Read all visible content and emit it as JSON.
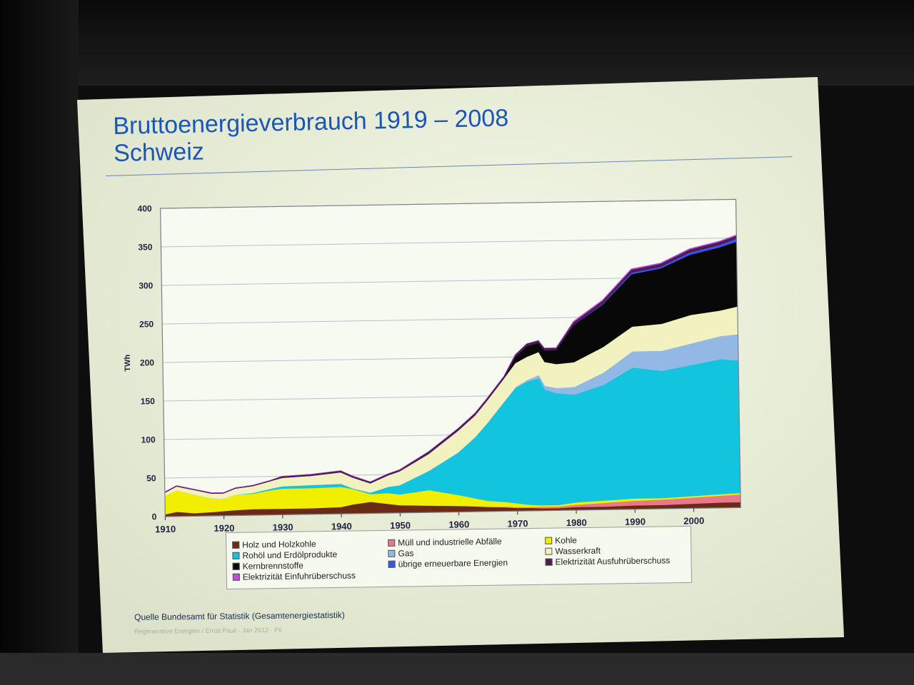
{
  "slide": {
    "title_line1": "Bruttoenergieverbrauch 1919 – 2008",
    "title_line2": "Schweiz",
    "source": "Quelle Bundesamt für Statistik (Gesamtenergiestatistik)",
    "footer": "Regenerative Energien  /  Ernst Pauli - Jan 2012 · P6"
  },
  "chart_data": {
    "type": "area",
    "title": "",
    "xlabel": "",
    "ylabel": "TWh",
    "xlim": [
      1910,
      2008
    ],
    "ylim": [
      0,
      400
    ],
    "x_ticks": [
      1910,
      1920,
      1930,
      1940,
      1950,
      1960,
      1970,
      1980,
      1990,
      2000
    ],
    "y_ticks": [
      0,
      50,
      100,
      150,
      200,
      250,
      300,
      350,
      400
    ],
    "grid": true,
    "legend_position": "bottom",
    "x": [
      1910,
      1912,
      1915,
      1918,
      1920,
      1922,
      1925,
      1928,
      1930,
      1935,
      1940,
      1942,
      1945,
      1948,
      1950,
      1955,
      1960,
      1963,
      1965,
      1968,
      1970,
      1972,
      1974,
      1975,
      1977,
      1980,
      1985,
      1990,
      1995,
      2000,
      2005,
      2008
    ],
    "series": [
      {
        "name": "Holz und Holzkohle",
        "color": "#6b2a14",
        "values": [
          3,
          6,
          4,
          5,
          6,
          7,
          8,
          8,
          8,
          8,
          9,
          12,
          15,
          12,
          10,
          9,
          8,
          7,
          6,
          5,
          4,
          4,
          3,
          3,
          3,
          4,
          4,
          5,
          5,
          6,
          7,
          7
        ]
      },
      {
        "name": "Müll und  industrielle Abfälle",
        "color": "#e9788c",
        "values": [
          0,
          0,
          0,
          0,
          0,
          0,
          0,
          0,
          0,
          0,
          0,
          0,
          0,
          0,
          0,
          0,
          0,
          0,
          0,
          1,
          1,
          1,
          2,
          2,
          2,
          3,
          5,
          6,
          7,
          8,
          9,
          10
        ]
      },
      {
        "name": "Kohle",
        "color": "#f2ee00",
        "values": [
          24,
          28,
          24,
          18,
          16,
          20,
          20,
          24,
          26,
          26,
          26,
          20,
          10,
          14,
          14,
          20,
          14,
          10,
          8,
          6,
          5,
          3,
          2,
          2,
          2,
          3,
          3,
          3,
          2,
          2,
          2,
          2
        ]
      },
      {
        "name": "Rohöl und Erdölprodukte",
        "color": "#12c4de",
        "values": [
          0,
          0,
          0,
          0,
          0,
          0,
          1,
          2,
          3,
          4,
          4,
          1,
          2,
          8,
          12,
          25,
          55,
          80,
          100,
          130,
          150,
          160,
          165,
          150,
          145,
          140,
          150,
          170,
          165,
          170,
          175,
          172
        ]
      },
      {
        "name": "Gas",
        "color": "#92b8e6",
        "values": [
          0,
          0,
          0,
          0,
          0,
          0,
          0,
          0,
          0,
          0,
          0,
          0,
          0,
          0,
          0,
          0,
          0,
          0,
          0,
          0,
          1,
          2,
          4,
          5,
          7,
          10,
          16,
          21,
          26,
          28,
          30,
          34
        ]
      },
      {
        "name": "Wasserkraft",
        "color": "#f2f2c0",
        "values": [
          4,
          5,
          6,
          6,
          7,
          8,
          9,
          10,
          11,
          12,
          15,
          14,
          12,
          15,
          18,
          22,
          28,
          28,
          29,
          30,
          31,
          30,
          30,
          31,
          31,
          32,
          33,
          32,
          35,
          37,
          33,
          36
        ]
      },
      {
        "name": "Kernbrennstoffe",
        "color": "#080808",
        "values": [
          0,
          0,
          0,
          0,
          0,
          0,
          0,
          0,
          0,
          0,
          0,
          0,
          0,
          0,
          0,
          0,
          0,
          0,
          0,
          0,
          8,
          14,
          12,
          15,
          18,
          48,
          55,
          68,
          72,
          78,
          82,
          84
        ]
      },
      {
        "name": "übrige erneuerbare Energien",
        "color": "#3a54ee",
        "values": [
          0,
          0,
          0,
          0,
          0,
          0,
          0,
          0,
          0,
          0,
          0,
          0,
          0,
          0,
          0,
          0,
          0,
          0,
          0,
          0,
          0,
          0,
          0,
          0,
          0,
          0,
          1,
          2,
          2,
          3,
          3,
          4
        ]
      },
      {
        "name": "Elektrizität Ausfuhrüberschuss",
        "color": "#4c1d50",
        "values": [
          1,
          1,
          1,
          1,
          1,
          1,
          1,
          1,
          2,
          2,
          2,
          2,
          2,
          2,
          2,
          3,
          3,
          3,
          3,
          3,
          3,
          3,
          3,
          3,
          3,
          4,
          4,
          4,
          4,
          4,
          4,
          4
        ]
      },
      {
        "name": "Elektrizität Einfuhrüberschuss",
        "color": "#c04ce6",
        "values": [
          0,
          0,
          0,
          0,
          0,
          0,
          0,
          0,
          0,
          0,
          0,
          0,
          0,
          0,
          0,
          0,
          0,
          0,
          0,
          0,
          0,
          0,
          0,
          0,
          0,
          1,
          1,
          1,
          1,
          1,
          1,
          1
        ]
      }
    ],
    "legend_order": [
      "Holz und Holzkohle",
      "Müll und  industrielle Abfälle",
      "Kohle",
      "Rohöl und Erdölprodukte",
      "Gas",
      "Wasserkraft",
      "Kernbrennstoffe",
      "übrige erneuerbare Energien",
      "Elektrizität Ausfuhrüberschuss",
      "Elektrizität Einfuhrüberschuss"
    ]
  }
}
